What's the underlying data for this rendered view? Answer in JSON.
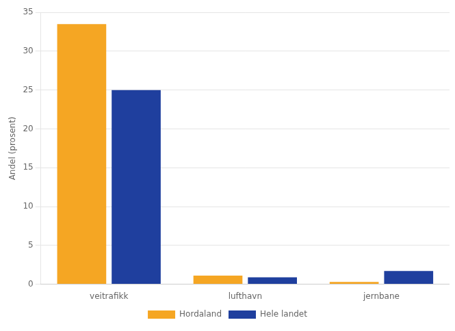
{
  "chart_data": {
    "type": "bar",
    "categories": [
      "veitrafikk",
      "lufthavn",
      "jernbane"
    ],
    "series": [
      {
        "name": "Hordaland",
        "color": "#F5A623",
        "values": [
          33.5,
          1.1,
          0.3
        ]
      },
      {
        "name": "Hele landet",
        "color": "#1F3F9E",
        "values": [
          25.0,
          0.9,
          1.7
        ]
      }
    ],
    "ylabel": "Andel (prosent)",
    "ylim": [
      0,
      35
    ],
    "yticks": [
      0,
      5,
      10,
      15,
      20,
      25,
      30,
      35
    ],
    "grid": true,
    "legend": "bottom"
  }
}
